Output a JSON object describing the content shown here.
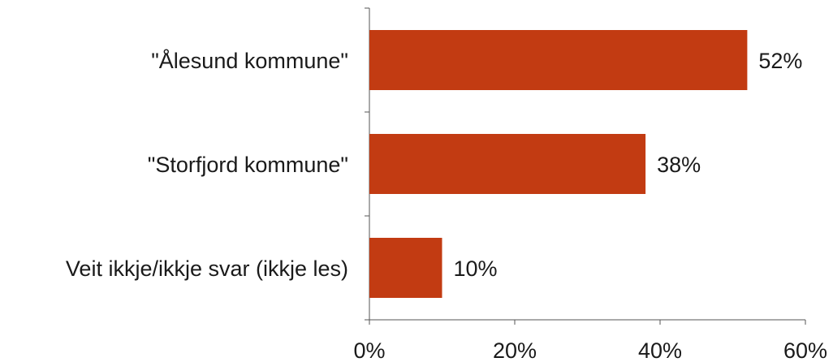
{
  "chart_data": {
    "type": "bar",
    "orientation": "horizontal",
    "categories": [
      "\"Ålesund kommune\"",
      "\"Storfjord kommune\"",
      "Veit ikkje/ikkje svar (ikkje les)"
    ],
    "values": [
      52,
      38,
      10
    ],
    "value_labels": [
      "52%",
      "38%",
      "10%"
    ],
    "xlim": [
      0,
      60
    ],
    "x_ticks": [
      0,
      20,
      40,
      60
    ],
    "x_tick_labels": [
      "0%",
      "20%",
      "40%",
      "60%"
    ],
    "bar_color": "#c23b12",
    "grid": false,
    "legend": "none"
  }
}
